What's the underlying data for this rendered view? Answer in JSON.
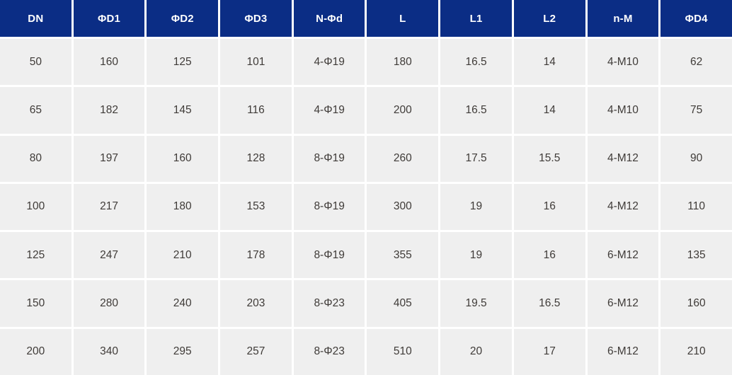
{
  "table": {
    "columns": [
      "DN",
      "ΦD1",
      "ΦD2",
      "ΦD3",
      "N-Φd",
      "L",
      "L1",
      "L2",
      "n-M",
      "ΦD4"
    ],
    "rows": [
      [
        "50",
        "160",
        "125",
        "101",
        "4-Φ19",
        "180",
        "16.5",
        "14",
        "4-M10",
        "62"
      ],
      [
        "65",
        "182",
        "145",
        "116",
        "4-Φ19",
        "200",
        "16.5",
        "14",
        "4-M10",
        "75"
      ],
      [
        "80",
        "197",
        "160",
        "128",
        "8-Φ19",
        "260",
        "17.5",
        "15.5",
        "4-M12",
        "90"
      ],
      [
        "100",
        "217",
        "180",
        "153",
        "8-Φ19",
        "300",
        "19",
        "16",
        "4-M12",
        "110"
      ],
      [
        "125",
        "247",
        "210",
        "178",
        "8-Φ19",
        "355",
        "19",
        "16",
        "6-M12",
        "135"
      ],
      [
        "150",
        "280",
        "240",
        "203",
        "8-Φ23",
        "405",
        "19.5",
        "16.5",
        "6-M12",
        "160"
      ],
      [
        "200",
        "340",
        "295",
        "257",
        "8-Φ23",
        "510",
        "20",
        "17",
        "6-M12",
        "210"
      ]
    ]
  },
  "colors": {
    "header_bg": "#0b2d85",
    "header_text": "#ffffff",
    "cell_bg": "#efefef",
    "cell_text": "#3f3b38",
    "gutter": "#ffffff"
  }
}
